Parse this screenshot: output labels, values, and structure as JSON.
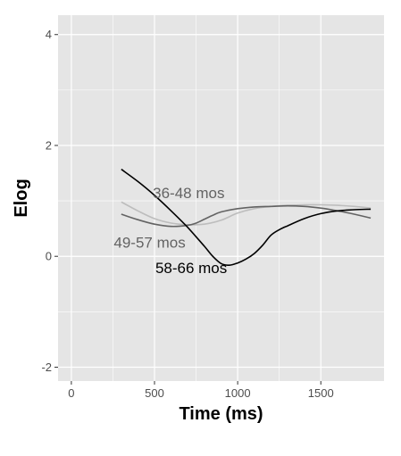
{
  "chart_data": {
    "type": "line",
    "title": "",
    "xlabel": "Time (ms)",
    "ylabel": "Elog",
    "xlim": [
      -80,
      1880
    ],
    "ylim": [
      -2.25,
      4.35
    ],
    "x_ticks": [
      0,
      500,
      1000,
      1500
    ],
    "x_tick_labels": [
      "0",
      "500",
      "1000",
      "1500"
    ],
    "y_ticks": [
      -2,
      0,
      2,
      4
    ],
    "y_tick_labels": [
      "-2",
      "0",
      "2",
      "4"
    ],
    "grid": true,
    "panel_background": "#e5e5e5",
    "grid_color": "#ffffff",
    "series": [
      {
        "name": "36-48 mos",
        "color": "#bdbdbd",
        "x": [
          300,
          400,
          500,
          600,
          700,
          800,
          900,
          1000,
          1100,
          1200,
          1300,
          1400,
          1500,
          1600,
          1700,
          1800
        ],
        "y": [
          0.98,
          0.82,
          0.68,
          0.6,
          0.57,
          0.58,
          0.65,
          0.78,
          0.86,
          0.9,
          0.92,
          0.93,
          0.93,
          0.92,
          0.9,
          0.87
        ]
      },
      {
        "name": "49-57 mos",
        "color": "#636363",
        "x": [
          300,
          400,
          500,
          600,
          700,
          750,
          800,
          850,
          900,
          1000,
          1100,
          1200,
          1300,
          1400,
          1500,
          1600,
          1700,
          1800
        ],
        "y": [
          0.76,
          0.66,
          0.58,
          0.54,
          0.56,
          0.6,
          0.67,
          0.74,
          0.8,
          0.86,
          0.89,
          0.9,
          0.91,
          0.9,
          0.87,
          0.82,
          0.76,
          0.69
        ]
      },
      {
        "name": "58-66 mos",
        "color": "#000000",
        "x": [
          300,
          400,
          500,
          600,
          700,
          800,
          850,
          900,
          950,
          1000,
          1050,
          1100,
          1150,
          1200,
          1250,
          1300,
          1400,
          1500,
          1600,
          1700,
          1800
        ],
        "y": [
          1.57,
          1.35,
          1.1,
          0.82,
          0.52,
          0.18,
          0.0,
          -0.13,
          -0.16,
          -0.12,
          -0.05,
          0.05,
          0.2,
          0.38,
          0.48,
          0.55,
          0.68,
          0.77,
          0.82,
          0.84,
          0.85
        ]
      }
    ],
    "annotations": [
      {
        "text": "36-48 mos",
        "x": 490,
        "y": 1.05,
        "color": "#636363",
        "anchor": "start"
      },
      {
        "text": "49-57 mos",
        "x": 255,
        "y": 0.16,
        "color": "#636363",
        "anchor": "start"
      },
      {
        "text": "58-66 mos",
        "x": 505,
        "y": -0.3,
        "color": "#000000",
        "anchor": "start"
      }
    ]
  }
}
